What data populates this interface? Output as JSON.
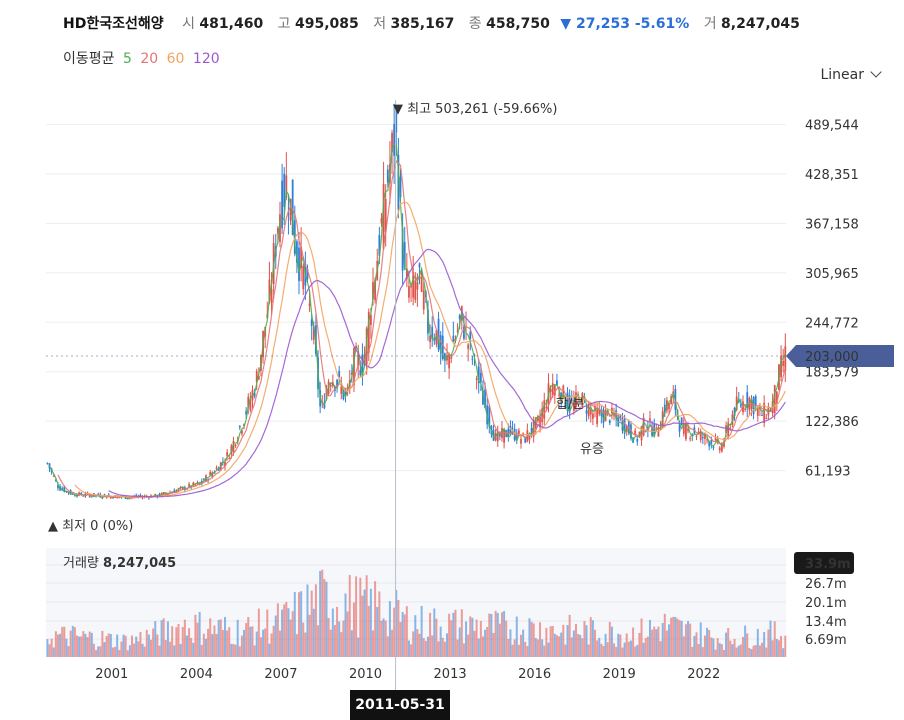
{
  "header": {
    "name": "HD한국조선해양",
    "open_label": "시",
    "open": "481,460",
    "high_label": "고",
    "high": "495,085",
    "low_label": "저",
    "low": "385,167",
    "close_label": "종",
    "close": "458,750",
    "change": "▼ 27,253 -5.61%",
    "volume_label": "거",
    "volume": "8,247,045"
  },
  "ma_legend": {
    "label": "이동평균",
    "p5": "5",
    "p20": "20",
    "p60": "60",
    "p120": "120"
  },
  "scale_toggle": "Linear",
  "colors": {
    "up": "#e0524b",
    "down": "#2e7fd9",
    "ma5": "#4caf50",
    "ma20": "#e57373",
    "ma60": "#f4a460",
    "ma120": "#9b59d0",
    "price_tag": "#4a5f9a"
  },
  "chart_data": {
    "type": "candlestick",
    "y_ticks": [
      "489,544",
      "428,351",
      "367,158",
      "305,965",
      "244,772",
      "183,579",
      "122,386",
      "61,193"
    ],
    "y_tick_values": [
      489544,
      428351,
      367158,
      305965,
      244772,
      183579,
      122386,
      61193
    ],
    "ylim": [
      0,
      520000
    ],
    "x_ticks": [
      "2001",
      "2004",
      "2007",
      "2010",
      "2013",
      "2016",
      "2019",
      "2022"
    ],
    "xlim": [
      1999.05,
      2025.3
    ],
    "current_price": "203,000",
    "high_annotation": "최고 503,261 (-59.66%)",
    "low_annotation": "최저 0 (0%)",
    "events": [
      "합/분",
      "유증"
    ],
    "crosshair_date": "2011-05-31",
    "series": [
      {
        "name": "price_close",
        "x": [
          1999.1,
          1999.5,
          2000,
          2001,
          2002,
          2003,
          2004,
          2004.5,
          2005,
          2005.5,
          2006,
          2006.5,
          2007,
          2007.3,
          2007.6,
          2007.9,
          2008.2,
          2008.5,
          2008.8,
          2009.1,
          2009.4,
          2009.7,
          2010,
          2010.3,
          2010.6,
          2010.9,
          2011.2,
          2011.45,
          2011.75,
          2012,
          2012.3,
          2012.6,
          2012.9,
          2013.2,
          2013.5,
          2013.8,
          2014.1,
          2014.4,
          2014.7,
          2015,
          2015.5,
          2016,
          2016.5,
          2017,
          2017.3,
          2017.6,
          2018,
          2018.5,
          2019,
          2019.5,
          2020,
          2020.3,
          2020.7,
          2021,
          2021.3,
          2021.6,
          2022,
          2022.5,
          2023,
          2023.5,
          2024,
          2024.4,
          2024.8,
          2025.1,
          2025.25
        ],
        "values": [
          70000,
          40000,
          32000,
          30000,
          28000,
          30000,
          40000,
          45000,
          60000,
          80000,
          120000,
          170000,
          280000,
          380000,
          420000,
          340000,
          300000,
          240000,
          130000,
          180000,
          170000,
          150000,
          200000,
          190000,
          280000,
          350000,
          430000,
          480000,
          300000,
          280000,
          300000,
          240000,
          230000,
          190000,
          220000,
          250000,
          210000,
          170000,
          130000,
          100000,
          110000,
          100000,
          120000,
          170000,
          160000,
          140000,
          150000,
          130000,
          130000,
          120000,
          100000,
          120000,
          110000,
          140000,
          150000,
          110000,
          110000,
          100000,
          90000,
          140000,
          150000,
          130000,
          140000,
          185000,
          203000
        ]
      },
      {
        "name": "volume",
        "x": [
          2000,
          2002,
          2004,
          2006,
          2007.5,
          2008.8,
          2011,
          2012,
          2014,
          2016,
          2018,
          2020,
          2021,
          2023,
          2025
        ],
        "values": [
          8,
          6,
          12,
          10,
          14,
          22,
          19,
          13,
          12,
          11,
          10,
          9,
          12,
          7,
          9
        ]
      }
    ],
    "volume_label": "거래량",
    "volume_value": "8,247,045",
    "volume_ticks": [
      "33.9m",
      "26.7m",
      "20.1m",
      "13.4m",
      "6.69m"
    ]
  }
}
